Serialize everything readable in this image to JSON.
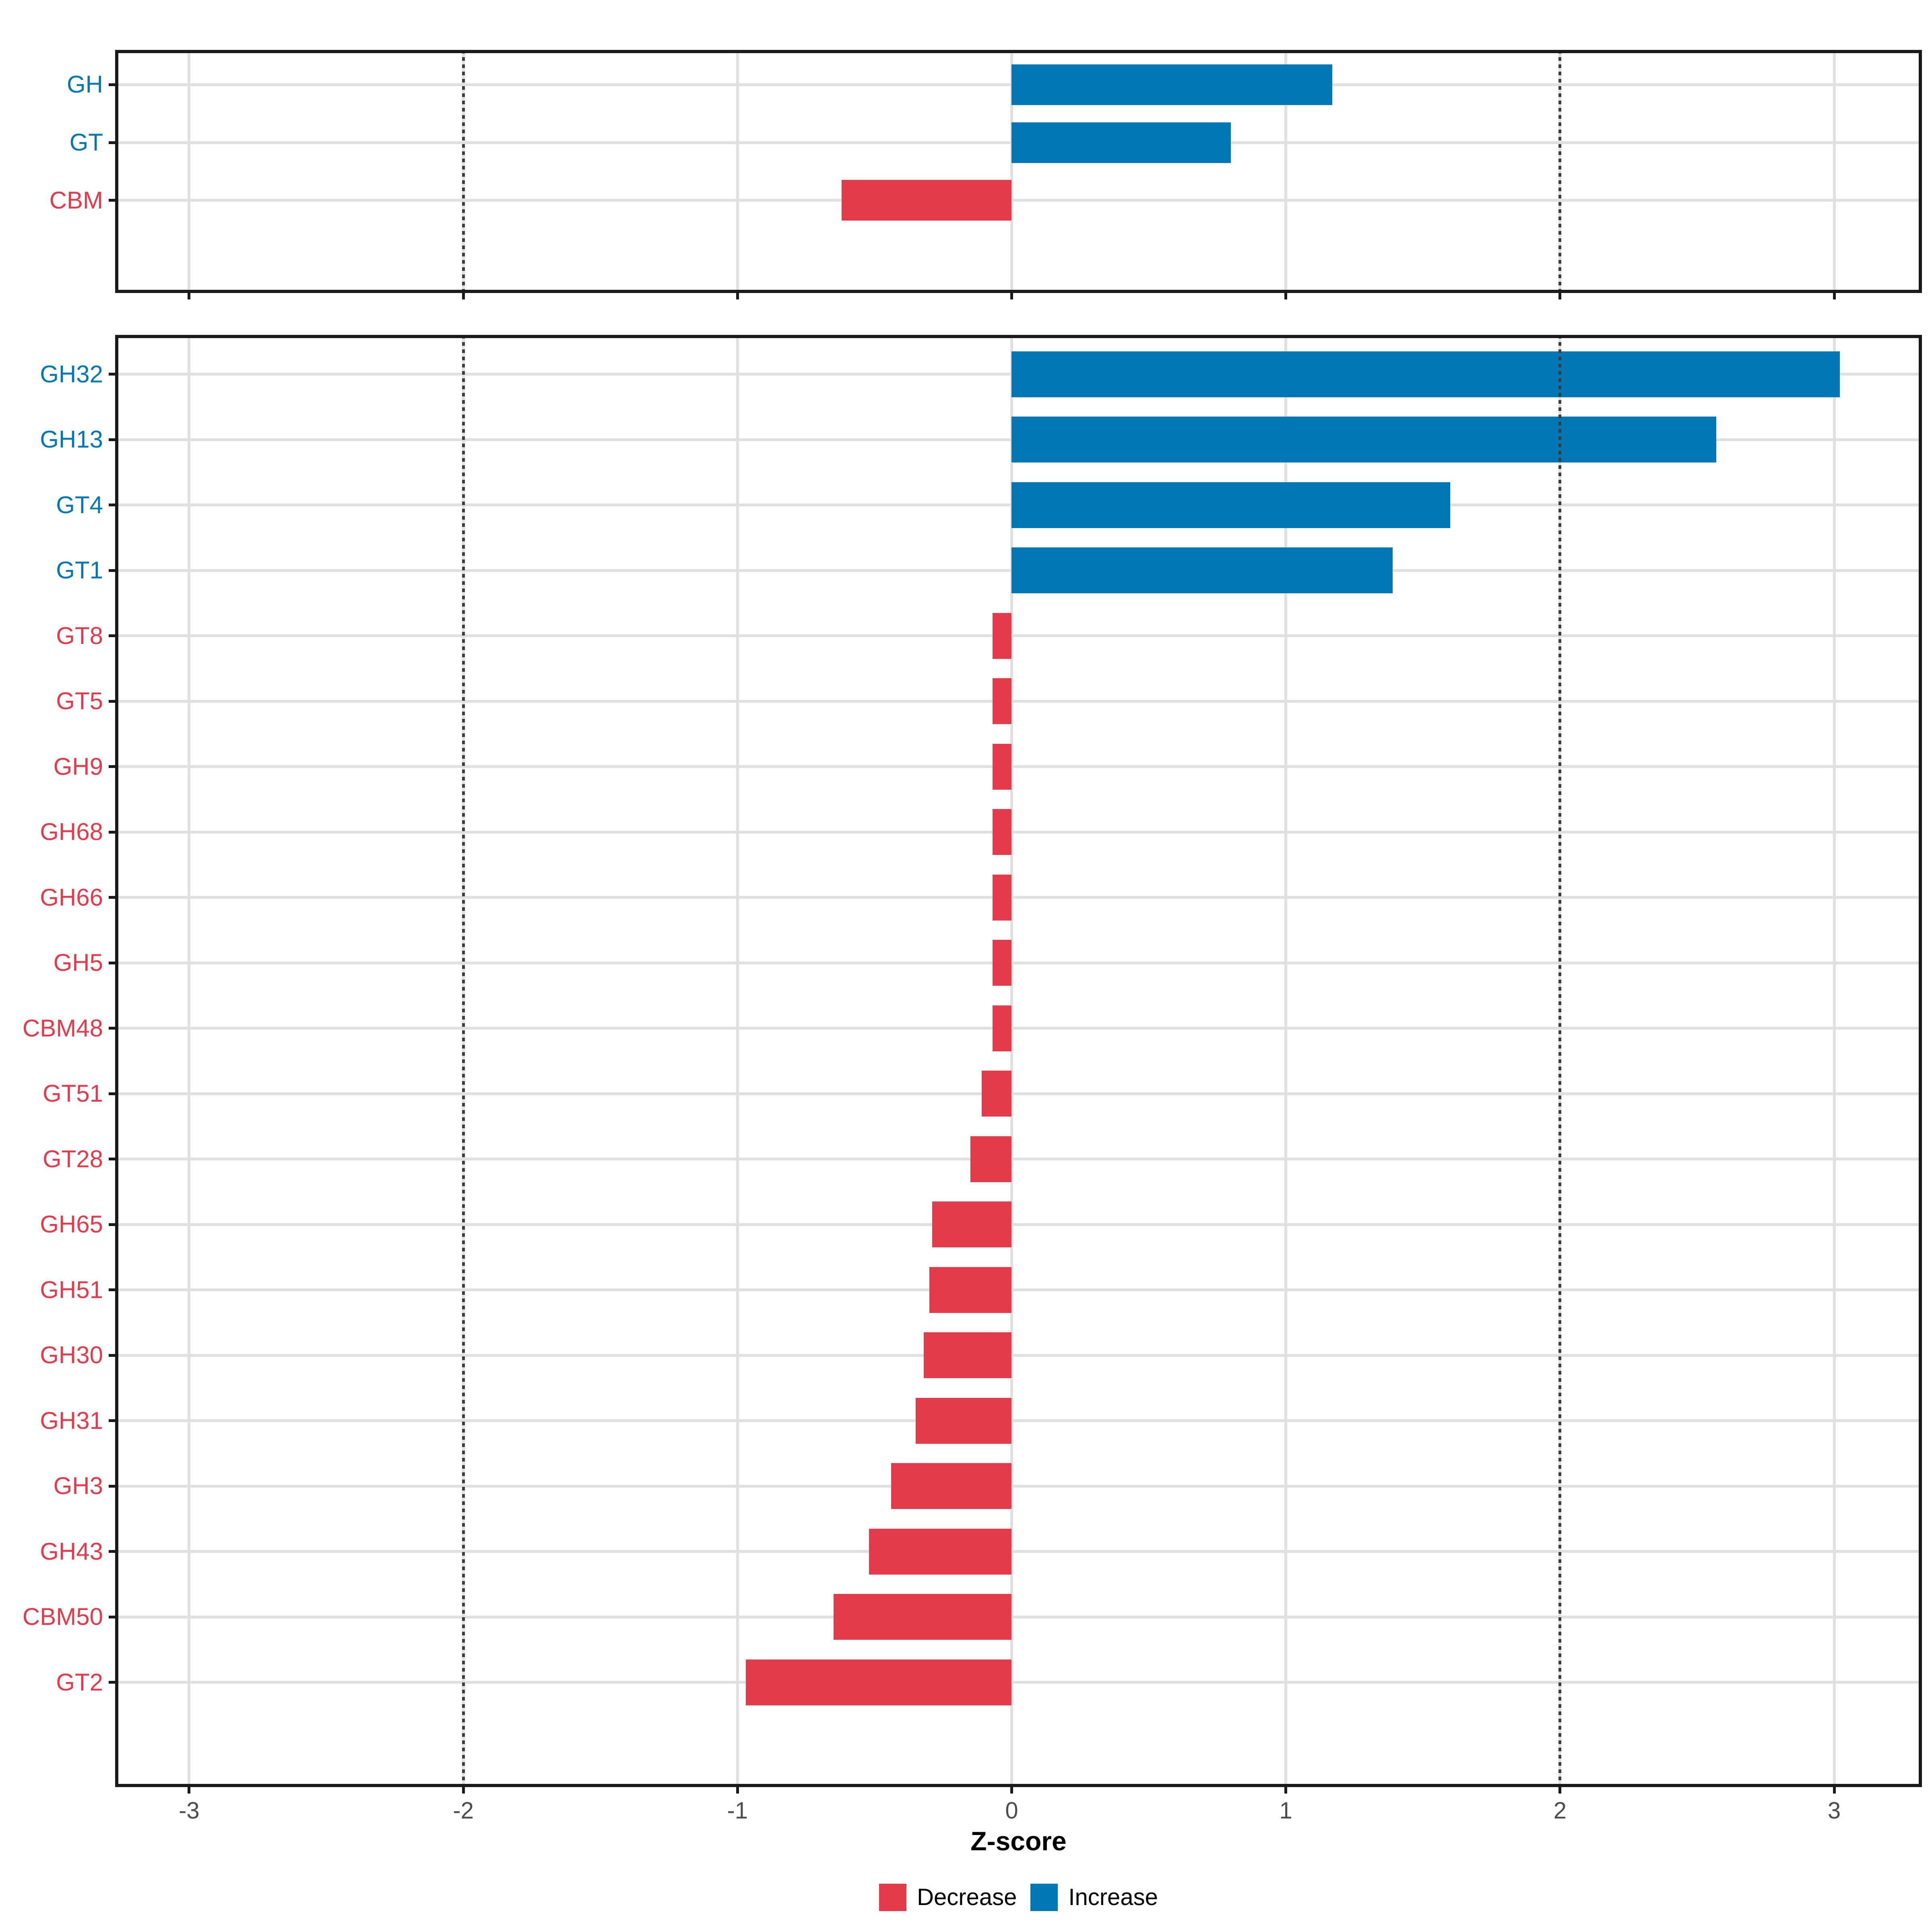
{
  "chart_data": {
    "type": "bar",
    "orientation": "horizontal",
    "title": "",
    "xlabel": "Z-score",
    "ylabel": "",
    "xlim": [
      -3.27,
      3.32
    ],
    "x_ticks": [
      -3,
      -2,
      -1,
      0,
      1,
      2,
      3
    ],
    "threshold_lines_x": [
      -2,
      2
    ],
    "grid": "major x and y, solid light gray; panel border black; faceted in 2 stacked panels",
    "legend_position": "bottom",
    "panels": [
      {
        "id": "classes",
        "categories": [
          "GH",
          "GT",
          "CBM"
        ],
        "values": [
          1.17,
          0.8,
          -0.62
        ]
      },
      {
        "id": "families",
        "categories": [
          "GH32",
          "GH13",
          "GT4",
          "GT1",
          "GT8",
          "GT5",
          "GH9",
          "GH68",
          "GH66",
          "GH5",
          "CBM48",
          "GT51",
          "GT28",
          "GH65",
          "GH51",
          "GH30",
          "GH31",
          "GH3",
          "GH43",
          "CBM50",
          "GT2"
        ],
        "values": [
          3.02,
          2.57,
          1.6,
          1.39,
          -0.07,
          -0.07,
          -0.07,
          -0.07,
          -0.07,
          -0.07,
          -0.07,
          -0.11,
          -0.15,
          -0.29,
          -0.3,
          -0.32,
          -0.35,
          -0.44,
          -0.52,
          -0.65,
          -0.97
        ]
      }
    ],
    "legend": [
      {
        "label": "Decrease",
        "color": "#E43B4C",
        "direction": "decrease"
      },
      {
        "label": "Increase",
        "color": "#0277B4",
        "direction": "increase"
      }
    ],
    "colors": {
      "increase": "#0277B4",
      "decrease": "#E43B4C",
      "grid": "#E0E0E0",
      "axis": "#1A1A1A",
      "threshold_dash": "#3C3C3C",
      "x_tick_label": "#4D4D4D"
    }
  }
}
